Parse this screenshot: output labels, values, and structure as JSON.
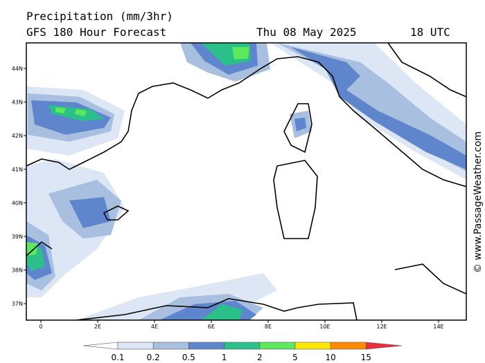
{
  "header": {
    "title": "Precipitation (mm/3hr)",
    "model": "GFS 180 Hour Forecast",
    "date": "Thu 08 May 2025",
    "time": "18 UTC"
  },
  "map": {
    "lat_ticks": [
      {
        "value": 44,
        "label": "44N"
      },
      {
        "value": 43,
        "label": "43N"
      },
      {
        "value": 42,
        "label": "42N"
      },
      {
        "value": 41,
        "label": "41N"
      },
      {
        "value": 40,
        "label": "40N"
      },
      {
        "value": 39,
        "label": "39N"
      },
      {
        "value": 38,
        "label": "38N"
      },
      {
        "value": 37,
        "label": "37N"
      }
    ],
    "lon_ticks": [
      0,
      {
        "value": 2,
        "label": "2E"
      },
      {
        "value": 4,
        "label": "4E"
      },
      {
        "value": 6,
        "label": "6E"
      },
      {
        "value": 8,
        "label": "8E"
      },
      {
        "value": 10,
        "label": "10E"
      },
      {
        "value": 12,
        "label": "12E"
      },
      {
        "value": 14,
        "label": "14E"
      }
    ]
  },
  "legend": {
    "levels": [
      0.1,
      0.2,
      0.5,
      1,
      2,
      5,
      10,
      15
    ],
    "colors": [
      "#ffffff",
      "#dce6f5",
      "#a9bfe0",
      "#5f86cc",
      "#2bbf8a",
      "#5ee85e",
      "#ffe600",
      "#ff8c00",
      "#e8303a"
    ]
  },
  "watermark": "© www.PassageWeather.com"
}
